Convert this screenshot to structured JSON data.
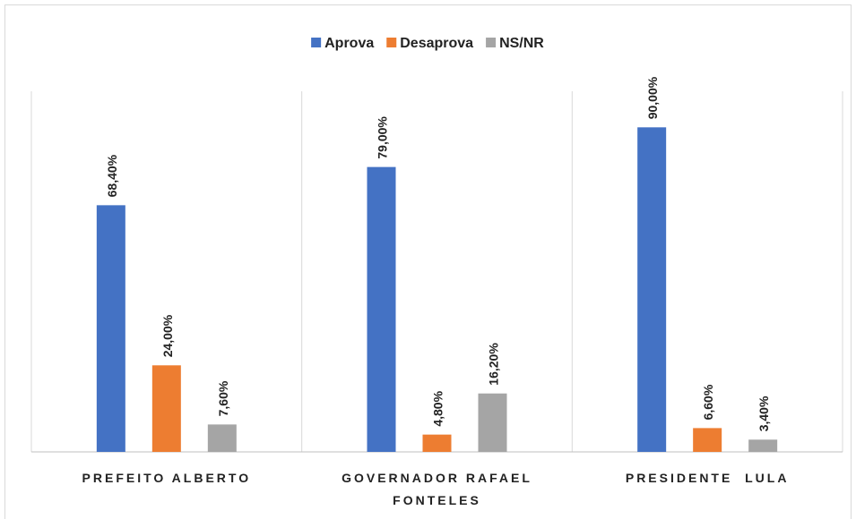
{
  "chart_data": {
    "type": "bar",
    "categories": [
      "PREFEITO ALBERTO",
      "GOVERNADOR RAFAEL FONTELES",
      "PRESIDENTE  LULA"
    ],
    "series": [
      {
        "name": "Aprova",
        "color": "#4472c4",
        "values": [
          68.4,
          79,
          90
        ],
        "value_labels": [
          "68,40%",
          "79,00%",
          "90,00%"
        ]
      },
      {
        "name": "Desaprova",
        "color": "#ed7d31",
        "values": [
          24,
          4.8,
          6.6
        ],
        "value_labels": [
          "24,00%",
          "4,80%",
          "6,60%"
        ]
      },
      {
        "name": "NS/NR",
        "color": "#a5a5a5",
        "values": [
          7.6,
          16.2,
          3.4
        ],
        "value_labels": [
          "7,60%",
          "16,20%",
          "3,40%"
        ]
      }
    ],
    "ylim": [
      0,
      100
    ],
    "legend": "top"
  }
}
